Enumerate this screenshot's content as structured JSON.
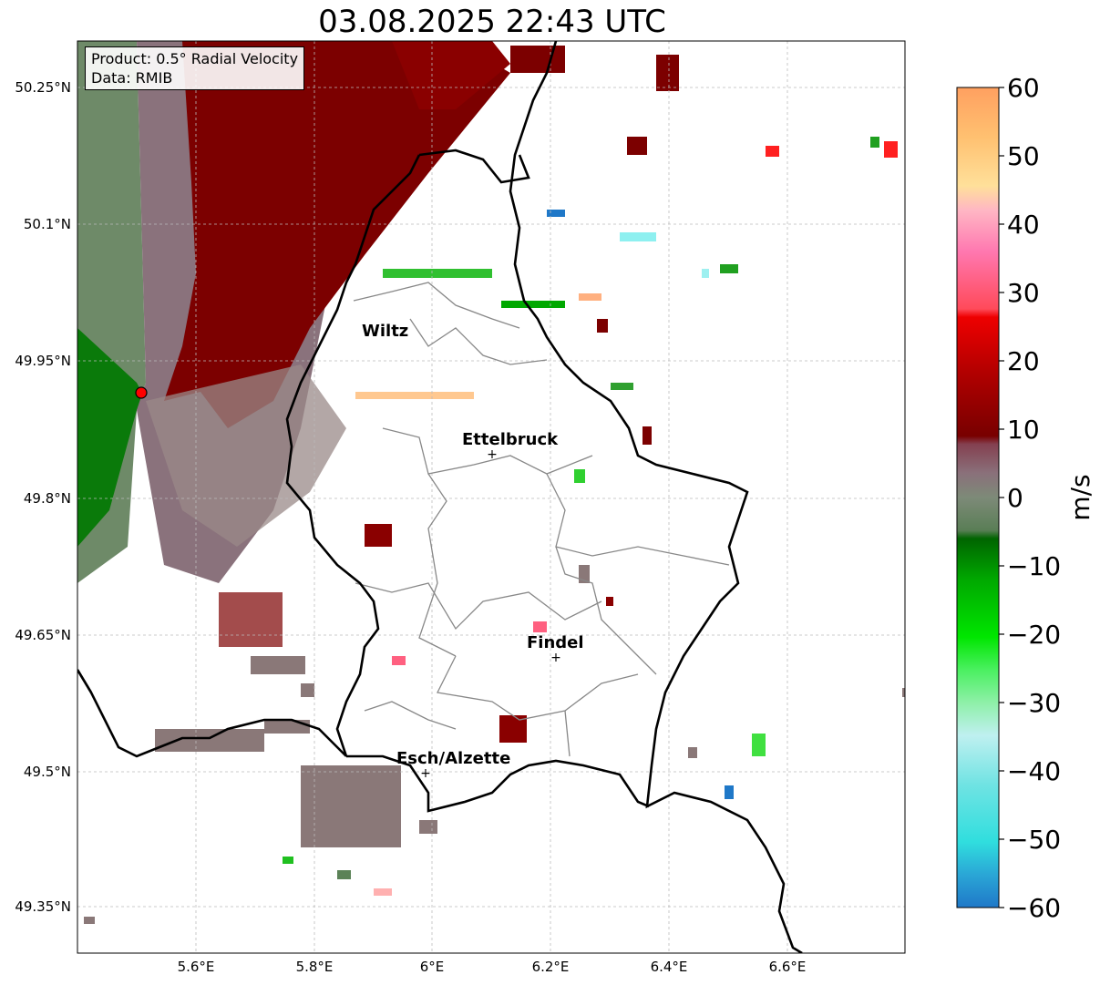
{
  "title": "03.08.2025 22:43 UTC",
  "info_box": {
    "product": "Product: 0.5° Radial Velocity",
    "data": "Data: RMIB"
  },
  "lat_labels": [
    "50.25°N",
    "50.1°N",
    "49.95°N",
    "49.8°N",
    "49.65°N",
    "49.5°N",
    "49.35°N"
  ],
  "lon_labels": [
    "5.6°E",
    "5.8°E",
    "6°E",
    "6.2°E",
    "6.4°E",
    "6.6°E"
  ],
  "cities": [
    {
      "name": "Wiltz",
      "marker": false
    },
    {
      "name": "Ettelbruck",
      "marker": true
    },
    {
      "name": "Findel",
      "marker": true
    },
    {
      "name": "Esch/Alzette",
      "marker": true
    }
  ],
  "colorbar": {
    "unit": "m/s",
    "min": -60,
    "max": 60,
    "ticks": [
      "60",
      "50",
      "40",
      "30",
      "20",
      "10",
      "0",
      "−10",
      "−20",
      "−30",
      "−40",
      "−50",
      "−60"
    ]
  },
  "colors": {
    "radar_site": "#ff0000",
    "strong_outbound": "#7a0000",
    "weak_outbound": "#8a6f76",
    "weak_inbound": "#5b8257",
    "strong_inbound": "#007a00"
  }
}
